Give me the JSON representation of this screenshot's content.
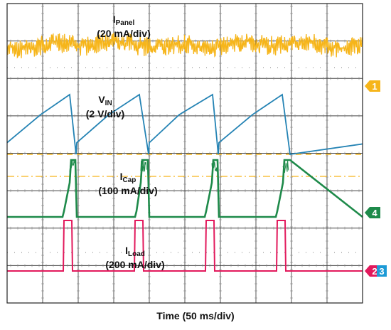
{
  "chart_data": {
    "type": "line",
    "xlabel": "Time (50 ms/div)",
    "x_unit": "ms",
    "divisions": {
      "x": 10,
      "y": 8
    },
    "grid": true,
    "colors": {
      "panel": "#f6b51a",
      "vin": "#2483b4",
      "cap": "#1e8a4a",
      "load": "#e2195c",
      "marker3": "#1c9ad6"
    },
    "series": [
      {
        "key": "panel",
        "label": "I",
        "sub": "Panel",
        "scale": "(20 mA/div)",
        "marker": "1",
        "x": [
          0,
          50,
          100,
          150,
          200,
          250,
          300,
          350,
          400,
          450,
          500
        ],
        "y": [
          20,
          20,
          20,
          20,
          20,
          20,
          20,
          20,
          20,
          20,
          20
        ]
      },
      {
        "key": "vin",
        "label": "V",
        "sub": "IN",
        "scale": "(2 V/div)",
        "marker": "",
        "x": [
          0,
          47,
          88,
          97,
          98,
          143,
          186,
          199,
          200,
          242,
          289,
          297,
          298,
          345,
          387,
          398
        ],
        "y": [
          3.2,
          7.5,
          10.6,
          1.4,
          3.2,
          7.5,
          10.6,
          1.4,
          3.2,
          7.5,
          10.6,
          1.4,
          3.2,
          7.5,
          10.6,
          1.4
        ]
      },
      {
        "key": "cap",
        "label": "I",
        "sub": "Cap",
        "scale": "(100 mA/div)",
        "marker": "4",
        "x": [
          0,
          78,
          80,
          88,
          90,
          96,
          98,
          180,
          182,
          188,
          190,
          198,
          200,
          278,
          280,
          288,
          290,
          296,
          298,
          378,
          380,
          388,
          390,
          398
        ],
        "y": [
          0,
          0,
          20,
          120,
          200,
          200,
          0,
          0,
          20,
          120,
          200,
          200,
          0,
          0,
          20,
          120,
          200,
          200,
          0,
          0,
          20,
          120,
          200,
          200
        ]
      },
      {
        "key": "load",
        "label": "I",
        "sub": "Load",
        "scale": "(200 mA/div)",
        "marker": "2",
        "x": [
          0,
          79,
          80,
          91,
          92,
          179,
          180,
          191,
          192,
          279,
          280,
          291,
          292,
          379,
          380,
          391,
          392,
          398
        ],
        "y": [
          0,
          0,
          300,
          300,
          0,
          0,
          300,
          300,
          0,
          0,
          300,
          300,
          0,
          0,
          300,
          300,
          0,
          0
        ]
      }
    ],
    "extra_markers": [
      "3"
    ]
  }
}
